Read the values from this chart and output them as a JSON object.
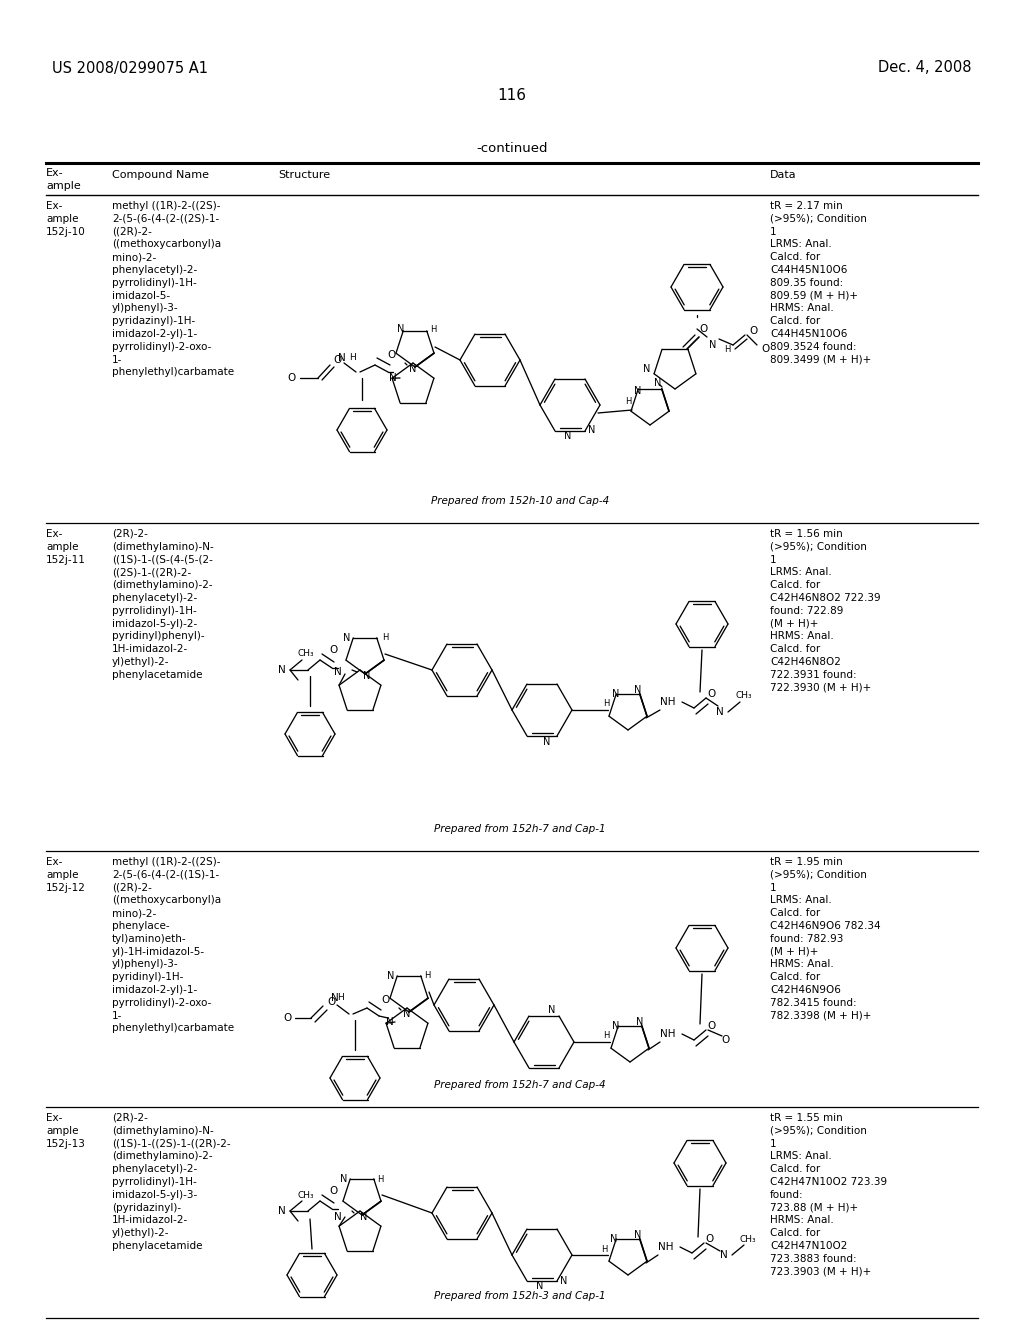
{
  "page_left_header": "US 2008/0299075 A1",
  "page_right_header": "Dec. 4, 2008",
  "page_number": "116",
  "continued_text": "-continued",
  "bg_color": "#ffffff",
  "text_color": "#000000",
  "rows": [
    {
      "example": "Ex-\nample\n152j-10",
      "compound_name": "methyl ((1R)-2-((2S)-\n2-(5-(6-(4-(2-((2S)-1-\n((2R)-2-\n((methoxycarbonyl)a\nmino)-2-\nphenylacetyl)-2-\npyrrolidinyl)-1H-\nimidazol-5-\nyl)phenyl)-3-\npyridazinyl)-1H-\nimidazol-2-yl)-1-\npyrrolidinyl)-2-oxo-\n1-\nphenylethyl)carbamate",
      "prepared_from": "Prepared from 152h-10 and Cap-4",
      "data": "tR = 2.17 min\n(>95%); Condition\n1\nLRMS: Anal.\nCalcd. for\nC44H45N10O6\n809.35 found:\n809.59 (M + H)+\nHRMS: Anal.\nCalcd. for\nC44H45N10O6\n809.3524 found:\n809.3499 (M + H)+"
    },
    {
      "example": "Ex-\nample\n152j-11",
      "compound_name": "(2R)-2-\n(dimethylamino)-N-\n((1S)-1-((S-(4-(5-(2-\n((2S)-1-((2R)-2-\n(dimethylamino)-2-\nphenylacetyl)-2-\npyrrolidinyl)-1H-\nimidazol-5-yl)-2-\npyridinyl)phenyl)-\n1H-imidazol-2-\nyl)ethyl)-2-\nphenylacetamide",
      "prepared_from": "Prepared from 152h-7 and Cap-1",
      "data": "tR = 1.56 min\n(>95%); Condition\n1\nLRMS: Anal.\nCalcd. for\nC42H46N8O2 722.39\nfound: 722.89\n(M + H)+\nHRMS: Anal.\nCalcd. for\nC42H46N8O2\n722.3931 found:\n722.3930 (M + H)+"
    },
    {
      "example": "Ex-\nample\n152j-12",
      "compound_name": "methyl ((1R)-2-((2S)-\n2-(5-(6-(4-(2-((1S)-1-\n((2R)-2-\n((methoxycarbonyl)a\nmino)-2-\nphenylace-\ntyl)amino)eth-\nyl)-1H-imidazol-5-\nyl)phenyl)-3-\npyridinyl)-1H-\nimidazol-2-yl)-1-\npyrrolidinyl)-2-oxo-\n1-\nphenylethyl)carbamate",
      "prepared_from": "Prepared from 152h-7 and Cap-4",
      "data": "tR = 1.95 min\n(>95%); Condition\n1\nLRMS: Anal.\nCalcd. for\nC42H46N9O6 782.34\nfound: 782.93\n(M + H)+\nHRMS: Anal.\nCalcd. for\nC42H46N9O6\n782.3415 found:\n782.3398 (M + H)+"
    },
    {
      "example": "Ex-\nample\n152j-13",
      "compound_name": "(2R)-2-\n(dimethylamino)-N-\n((1S)-1-((2S)-1-((2R)-2-\n(dimethylamino)-2-\nphenylacetyl)-2-\npyrrolidinyl)-1H-\nimidazol-5-yl)-3-\n(pyridazinyl)-\n1H-imidazol-2-\nyl)ethyl)-2-\nphenylacetamide",
      "prepared_from": "Prepared from 152h-3 and Cap-1",
      "data": "tR = 1.55 min\n(>95%); Condition\n1\nLRMS: Anal.\nCalcd. for\nC42H47N10O2 723.39\nfound:\n723.88 (M + H)+\nHRMS: Anal.\nCalcd. for\nC42H47N10O2\n723.3883 found:\n723.3903 (M + H)+"
    }
  ]
}
